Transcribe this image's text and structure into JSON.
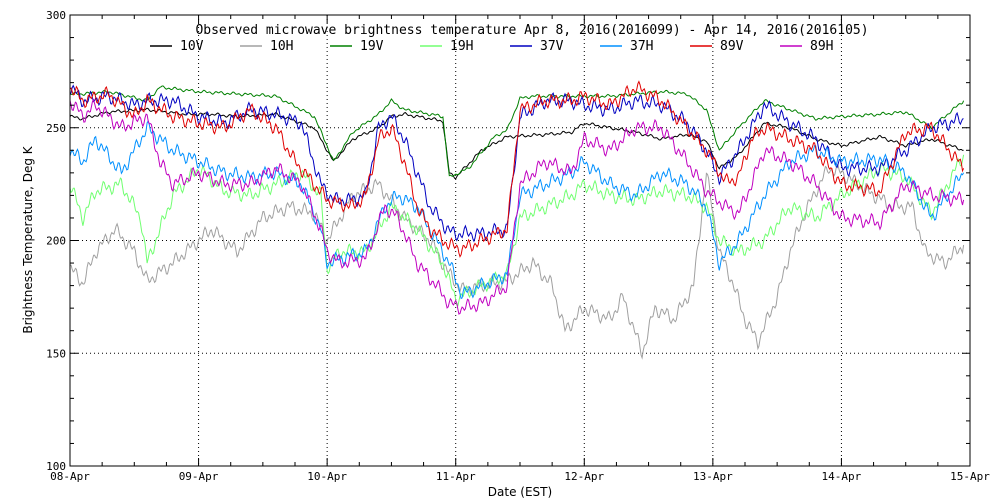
{
  "chart_data": {
    "type": "line",
    "title": "Observed microwave brightness temperature Apr  8, 2016(2016099) - Apr 14, 2016(2016105)",
    "xlabel": "Date (EST)",
    "ylabel": "Brightness Temperature, Deg K",
    "xlim": [
      0,
      7
    ],
    "ylim": [
      100,
      300
    ],
    "yticks": [
      100,
      150,
      200,
      250,
      300
    ],
    "x_tick_labels": [
      "08-Apr",
      "09-Apr",
      "10-Apr",
      "11-Apr",
      "12-Apr",
      "13-Apr",
      "14-Apr",
      "15-Apr"
    ],
    "grid": "dotted",
    "legend_position": "top",
    "x_unit": "days since 08-Apr 00:00 EST",
    "series": [
      {
        "name": "10V",
        "color": "#000000",
        "x": [
          0,
          0.1,
          0.3,
          0.6,
          0.9,
          1.1,
          1.3,
          1.6,
          1.9,
          2.0,
          2.05,
          2.2,
          2.4,
          2.5,
          2.6,
          2.9,
          2.95,
          3.0,
          3.2,
          3.4,
          3.7,
          3.9,
          4.0,
          4.2,
          4.4,
          4.6,
          4.8,
          4.95,
          5.05,
          5.2,
          5.4,
          5.6,
          5.8,
          6.0,
          6.3,
          6.5,
          6.7,
          6.95
        ],
        "y": [
          255,
          254,
          257,
          258,
          256,
          256,
          255,
          256,
          250,
          240,
          235,
          245,
          250,
          255,
          256,
          253,
          230,
          228,
          240,
          246,
          247,
          248,
          252,
          250,
          248,
          245,
          247,
          244,
          232,
          238,
          252,
          250,
          245,
          242,
          246,
          242,
          245,
          240
        ]
      },
      {
        "name": "10H",
        "color": "#a0a0a0",
        "x": [
          0,
          0.1,
          0.2,
          0.35,
          0.5,
          0.6,
          0.8,
          1.0,
          1.1,
          1.3,
          1.5,
          1.7,
          1.9,
          2.0,
          2.2,
          2.4,
          2.6,
          2.8,
          2.95,
          3.05,
          3.2,
          3.4,
          3.6,
          3.75,
          3.85,
          4.0,
          4.2,
          4.3,
          4.45,
          4.55,
          4.7,
          4.85,
          4.95,
          5.05,
          5.15,
          5.25,
          5.35,
          5.5,
          5.6,
          5.7,
          5.8,
          5.9,
          6.0,
          6.2,
          6.4,
          6.55,
          6.65,
          6.8,
          6.95
        ],
        "y": [
          188,
          181,
          195,
          205,
          195,
          182,
          190,
          200,
          205,
          195,
          210,
          215,
          212,
          200,
          220,
          225,
          210,
          200,
          185,
          178,
          180,
          182,
          190,
          180,
          160,
          170,
          165,
          175,
          150,
          170,
          165,
          180,
          230,
          195,
          182,
          165,
          155,
          175,
          195,
          210,
          222,
          232,
          230,
          222,
          215,
          215,
          195,
          190,
          198
        ]
      },
      {
        "name": "19V",
        "color": "#008000",
        "x": [
          0,
          0.1,
          0.3,
          0.6,
          0.7,
          1.0,
          1.3,
          1.6,
          1.9,
          2.0,
          2.05,
          2.2,
          2.4,
          2.5,
          2.6,
          2.9,
          2.95,
          3.1,
          3.3,
          3.4,
          3.5,
          3.6,
          3.8,
          4.0,
          4.2,
          4.4,
          4.6,
          4.8,
          4.95,
          5.05,
          5.2,
          5.4,
          5.6,
          5.8,
          6.0,
          6.3,
          6.5,
          6.7,
          6.95
        ],
        "y": [
          265,
          265,
          266,
          262,
          268,
          266,
          265,
          264,
          255,
          242,
          235,
          248,
          256,
          262,
          258,
          255,
          228,
          232,
          246,
          249,
          263,
          264,
          264,
          264,
          264,
          265,
          266,
          265,
          258,
          240,
          250,
          262,
          258,
          254,
          255,
          256,
          257,
          250,
          262
        ]
      },
      {
        "name": "19H",
        "color": "#70ff70",
        "x": [
          0,
          0.1,
          0.2,
          0.4,
          0.55,
          0.6,
          0.8,
          1.0,
          1.2,
          1.4,
          1.6,
          1.8,
          1.95,
          2.0,
          2.1,
          2.3,
          2.5,
          2.7,
          2.9,
          3.0,
          3.2,
          3.4,
          3.5,
          3.7,
          3.9,
          4.0,
          4.2,
          4.4,
          4.6,
          4.8,
          4.95,
          5.05,
          5.2,
          5.4,
          5.6,
          5.8,
          6.0,
          6.3,
          6.5,
          6.7,
          6.95
        ],
        "y": [
          225,
          210,
          222,
          225,
          210,
          190,
          220,
          232,
          222,
          220,
          225,
          230,
          220,
          188,
          195,
          195,
          215,
          205,
          190,
          174,
          180,
          185,
          210,
          215,
          220,
          225,
          220,
          218,
          222,
          220,
          215,
          200,
          195,
          200,
          215,
          210,
          220,
          232,
          228,
          212,
          238
        ]
      },
      {
        "name": "37V",
        "color": "#0000c0",
        "x": [
          0,
          0.1,
          0.3,
          0.5,
          0.6,
          0.8,
          1.0,
          1.2,
          1.4,
          1.6,
          1.8,
          1.95,
          2.05,
          2.2,
          2.3,
          2.4,
          2.5,
          2.6,
          2.7,
          2.8,
          2.95,
          3.0,
          3.2,
          3.4,
          3.5,
          3.7,
          3.9,
          4.0,
          4.2,
          4.4,
          4.6,
          4.8,
          4.95,
          5.05,
          5.2,
          5.4,
          5.6,
          5.8,
          6.0,
          6.3,
          6.5,
          6.7,
          6.95
        ],
        "y": [
          268,
          262,
          264,
          260,
          262,
          262,
          255,
          252,
          258,
          256,
          252,
          225,
          218,
          218,
          220,
          250,
          255,
          245,
          230,
          215,
          204,
          203,
          203,
          205,
          255,
          262,
          262,
          260,
          258,
          262,
          260,
          252,
          240,
          228,
          240,
          260,
          252,
          245,
          232,
          232,
          240,
          250,
          254
        ]
      },
      {
        "name": "37H",
        "color": "#0090ff",
        "x": [
          0,
          0.1,
          0.2,
          0.4,
          0.6,
          0.8,
          1.0,
          1.2,
          1.4,
          1.6,
          1.8,
          1.95,
          2.0,
          2.1,
          2.3,
          2.45,
          2.55,
          2.7,
          2.85,
          2.95,
          3.05,
          3.2,
          3.4,
          3.5,
          3.7,
          3.9,
          4.0,
          4.2,
          4.4,
          4.6,
          4.8,
          4.95,
          5.05,
          5.2,
          5.4,
          5.6,
          5.8,
          6.0,
          6.3,
          6.5,
          6.7,
          6.95
        ],
        "y": [
          240,
          235,
          245,
          230,
          250,
          240,
          235,
          230,
          228,
          230,
          225,
          205,
          190,
          192,
          195,
          215,
          220,
          215,
          200,
          190,
          176,
          180,
          185,
          220,
          225,
          230,
          235,
          225,
          220,
          230,
          225,
          215,
          190,
          200,
          220,
          235,
          240,
          235,
          236,
          230,
          210,
          230
        ]
      },
      {
        "name": "89V",
        "color": "#e00000",
        "x": [
          0,
          0.1,
          0.3,
          0.5,
          0.6,
          0.8,
          1.0,
          1.2,
          1.4,
          1.6,
          1.75,
          1.9,
          2.0,
          2.2,
          2.3,
          2.4,
          2.5,
          2.6,
          2.7,
          2.8,
          2.95,
          3.05,
          3.2,
          3.4,
          3.5,
          3.7,
          3.9,
          4.0,
          4.2,
          4.4,
          4.6,
          4.8,
          4.95,
          5.1,
          5.2,
          5.3,
          5.4,
          5.6,
          5.8,
          6.0,
          6.3,
          6.5,
          6.7,
          6.95
        ],
        "y": [
          268,
          262,
          265,
          255,
          262,
          255,
          252,
          250,
          258,
          250,
          235,
          225,
          218,
          215,
          220,
          245,
          250,
          235,
          215,
          205,
          198,
          196,
          200,
          205,
          258,
          262,
          262,
          264,
          260,
          268,
          262,
          250,
          240,
          226,
          228,
          245,
          250,
          245,
          240,
          225,
          222,
          248,
          250,
          232
        ]
      },
      {
        "name": "89H",
        "color": "#c000c0",
        "x": [
          0,
          0.1,
          0.2,
          0.4,
          0.6,
          0.7,
          0.8,
          1.0,
          1.2,
          1.4,
          1.6,
          1.8,
          1.95,
          2.0,
          2.1,
          2.3,
          2.45,
          2.55,
          2.7,
          2.85,
          2.95,
          3.05,
          3.2,
          3.4,
          3.5,
          3.7,
          3.9,
          4.0,
          4.2,
          4.4,
          4.6,
          4.8,
          4.95,
          5.1,
          5.2,
          5.3,
          5.4,
          5.6,
          5.8,
          6.0,
          6.3,
          6.5,
          6.7,
          6.95
        ],
        "y": [
          262,
          255,
          260,
          250,
          255,
          235,
          225,
          230,
          225,
          225,
          232,
          225,
          205,
          195,
          190,
          192,
          215,
          210,
          190,
          180,
          172,
          170,
          172,
          180,
          225,
          235,
          230,
          245,
          240,
          250,
          250,
          235,
          222,
          215,
          212,
          225,
          240,
          235,
          225,
          210,
          208,
          225,
          220,
          218
        ]
      }
    ]
  }
}
